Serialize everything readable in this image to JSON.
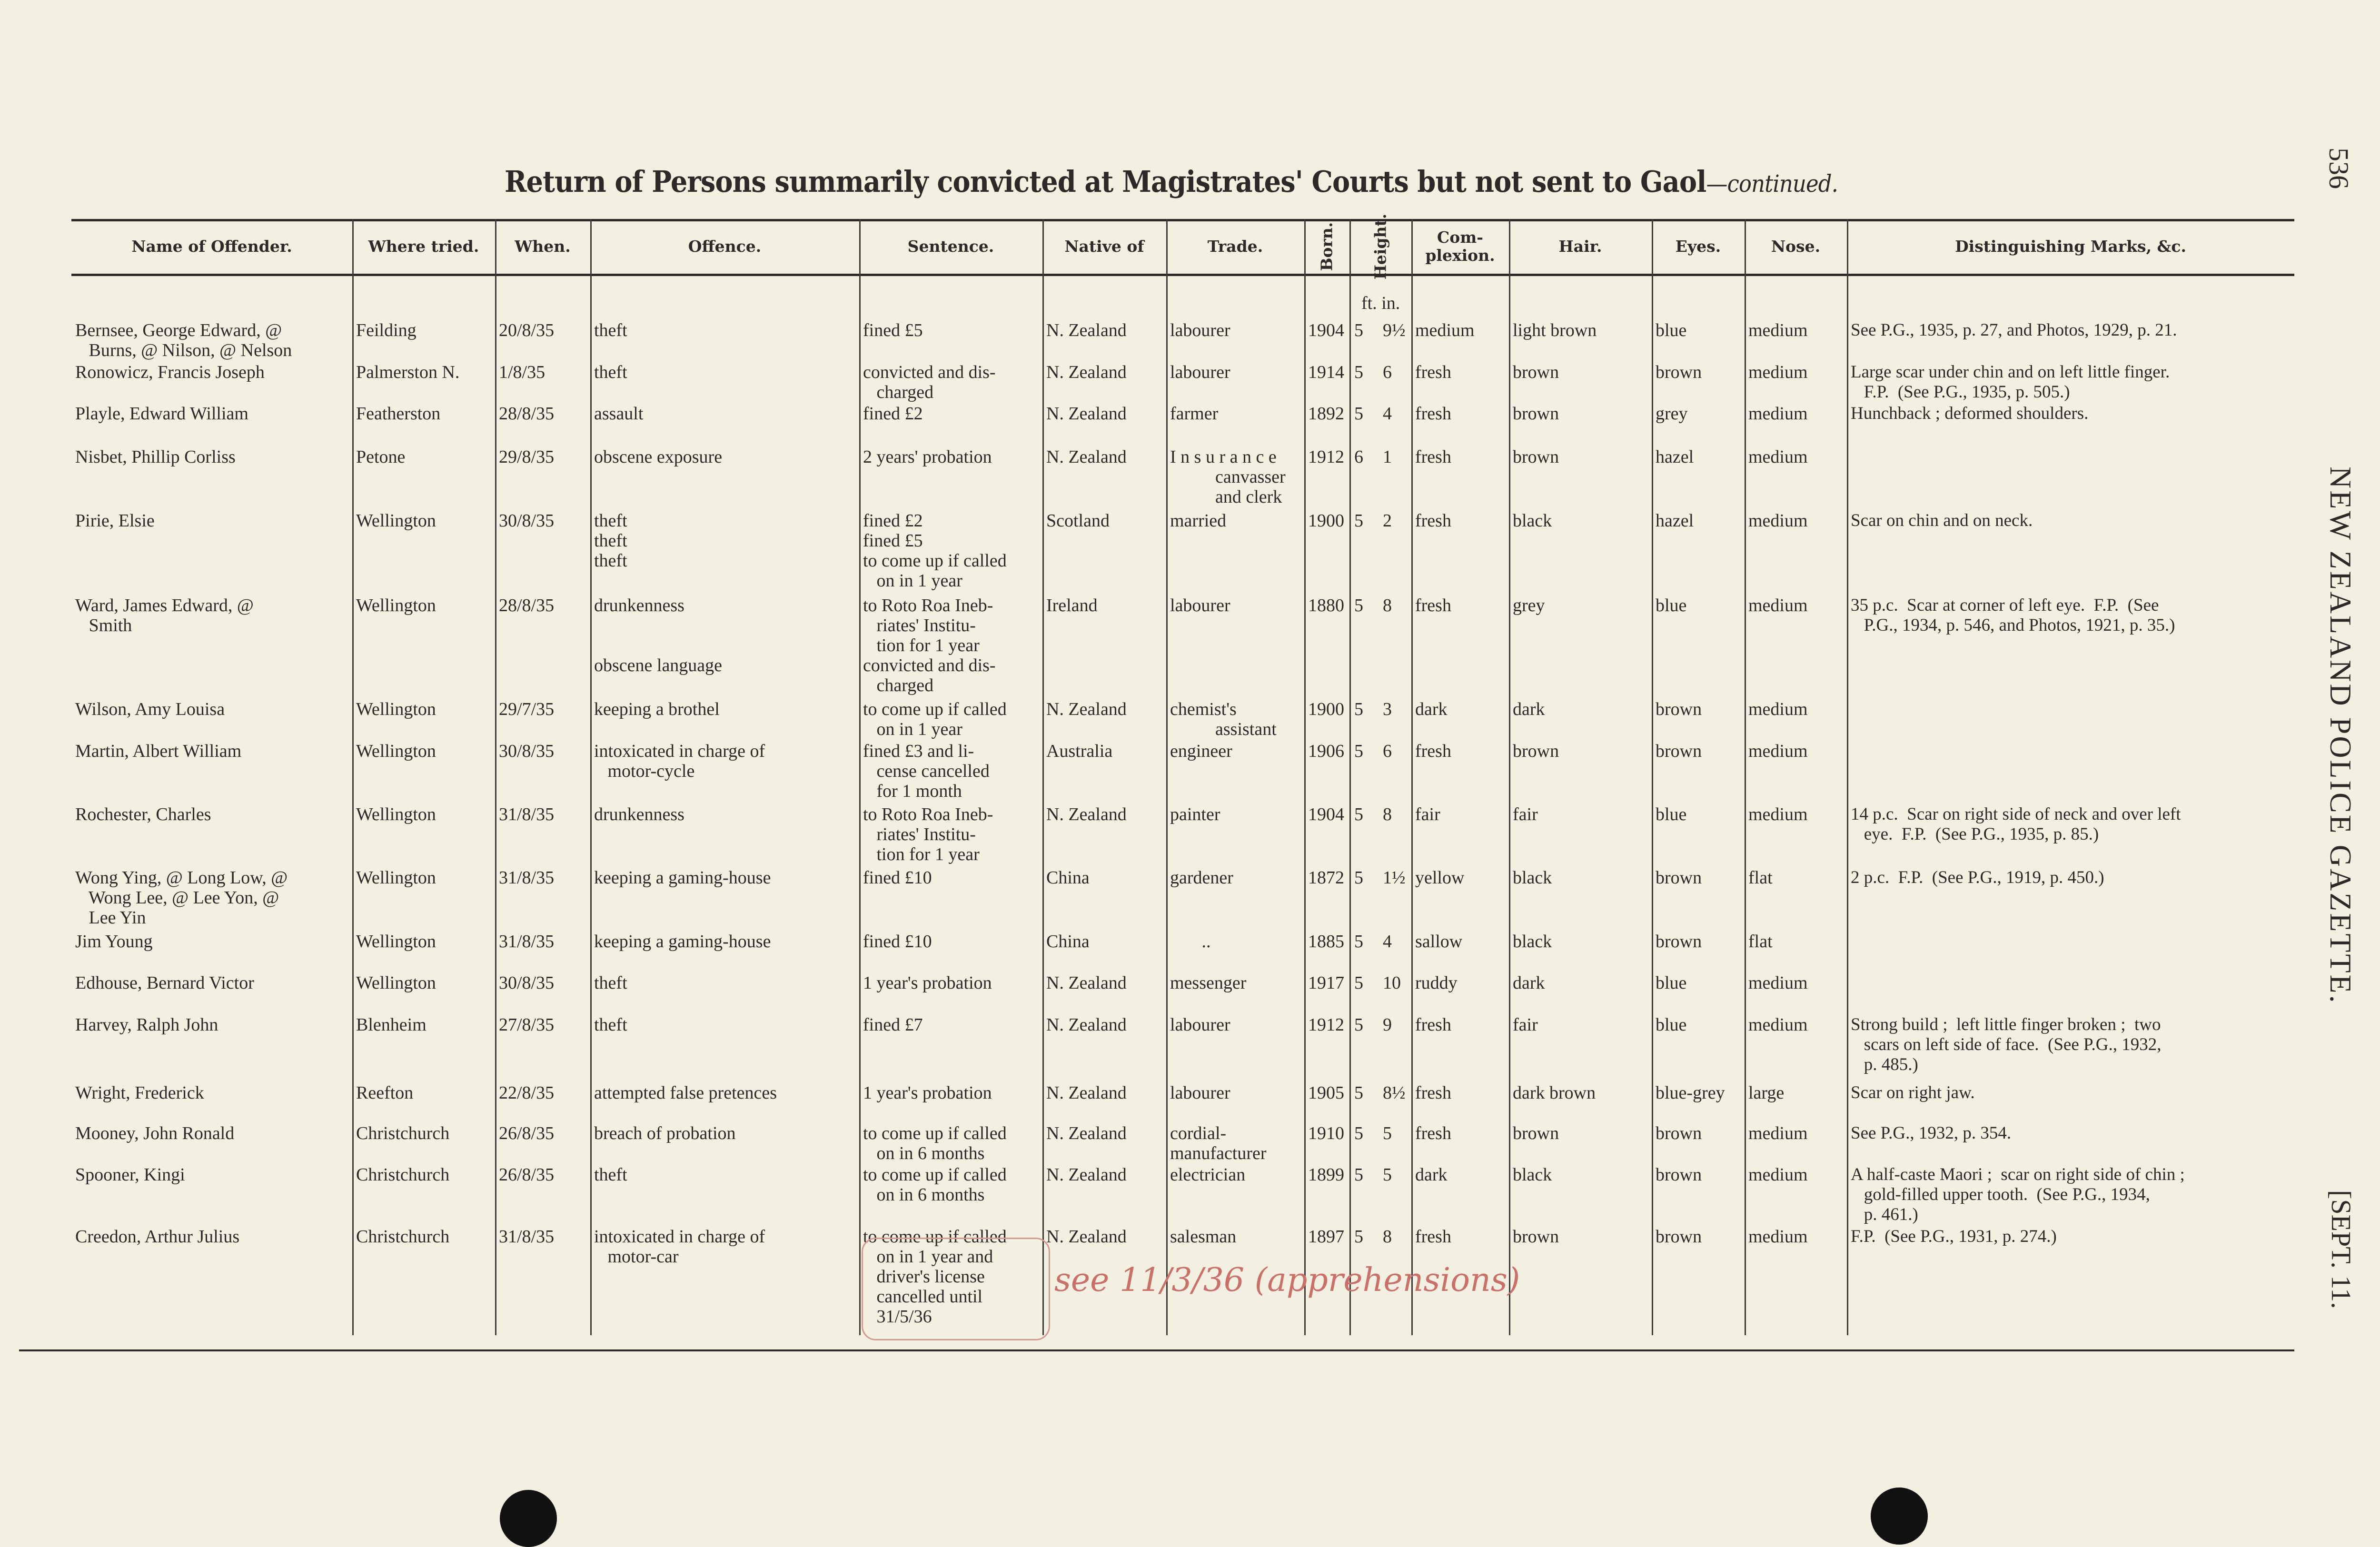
{
  "page": {
    "title": "Return of Persons summarily convicted at Magistrates' Courts but not sent to Gaol",
    "title_suffix": "—continued.",
    "page_number": "536",
    "publication": "NEW ZEALAND POLICE GAZETTE.",
    "date": "[SEPT. 11.",
    "height_units": "ft. in.",
    "annotation": "see 11/3/36 (apprehensions)",
    "ink_color": "#2b2a27",
    "annotation_color": "#c8706a"
  },
  "headers": [
    "Name of Offender.",
    "Where tried.",
    "When.",
    "Offence.",
    "Sentence.",
    "Native of",
    "Trade.",
    "Born.",
    "Height.",
    "Com-\nplexion.",
    "Hair.",
    "Eyes.",
    "Nose.",
    "Distinguishing Marks, &c."
  ],
  "rows": [
    {
      "name": "Bernsee, George Edward, @\n   Burns, @ Nilson, @ Nelson",
      "where": "Feilding",
      "when": "20/8/35",
      "entries": [
        {
          "offence": "theft",
          "sentence": "fined £5"
        }
      ],
      "native": "N. Zealand",
      "trade": "labourer",
      "born": "1904",
      "ft": "5",
      "in": "9½",
      "complexion": "medium",
      "hair": "light brown",
      "eyes": "blue",
      "nose": "medium",
      "marks": "See P.G., 1935, p. 27, and Photos, 1929, p. 21."
    },
    {
      "name": "Ronowicz, Francis Joseph",
      "where": "Palmerston N.",
      "when": "1/8/35",
      "entries": [
        {
          "offence": "theft",
          "sentence": "convicted and dis-\n   charged"
        }
      ],
      "native": "N. Zealand",
      "trade": "labourer",
      "born": "1914",
      "ft": "5",
      "in": "6",
      "complexion": "fresh",
      "hair": "brown",
      "eyes": "brown",
      "nose": "medium",
      "marks": "Large scar under chin and on left little finger.\n   F.P.  (See P.G., 1935, p. 505.)"
    },
    {
      "name": "Playle, Edward William",
      "where": "Featherston",
      "when": "28/8/35",
      "entries": [
        {
          "offence": "assault",
          "sentence": "fined £2"
        }
      ],
      "native": "N. Zealand",
      "trade": "farmer",
      "born": "1892",
      "ft": "5",
      "in": "4",
      "complexion": "fresh",
      "hair": "brown",
      "eyes": "grey",
      "nose": "medium",
      "marks": "Hunchback ; deformed shoulders."
    },
    {
      "name": "Nisbet, Phillip Corliss",
      "where": "Petone",
      "when": "29/8/35",
      "entries": [
        {
          "offence": "obscene exposure",
          "sentence": "2 years' probation"
        }
      ],
      "native": "N. Zealand",
      "trade": "I n s u r a n c e\n          canvasser\n          and clerk",
      "born": "1912",
      "ft": "6",
      "in": "1",
      "complexion": "fresh",
      "hair": "brown",
      "eyes": "hazel",
      "nose": "medium",
      "marks": ""
    },
    {
      "name": "Pirie, Elsie",
      "where": "Wellington",
      "when": "30/8/35",
      "entries": [
        {
          "offence": "theft",
          "sentence": "fined £2"
        },
        {
          "offence": "theft",
          "sentence": "fined £5"
        },
        {
          "offence": "theft",
          "sentence": "to come up if called\n   on in 1 year"
        }
      ],
      "native": "Scotland",
      "trade": "married",
      "born": "1900",
      "ft": "5",
      "in": "2",
      "complexion": "fresh",
      "hair": "black",
      "eyes": "hazel",
      "nose": "medium",
      "marks": "Scar on chin and on neck."
    },
    {
      "name": "Ward, James Edward, @\n   Smith",
      "where": "Wellington",
      "when": "28/8/35",
      "entries": [
        {
          "offence": "drunkenness",
          "sentence": "to Roto Roa Ineb-\n   riates' Institu-\n   tion for 1 year"
        },
        {
          "offence": "obscene language",
          "sentence": "convicted and dis-\n   charged"
        }
      ],
      "native": "Ireland",
      "trade": "labourer",
      "born": "1880",
      "ft": "5",
      "in": "8",
      "complexion": "fresh",
      "hair": "grey",
      "eyes": "blue",
      "nose": "medium",
      "marks": "35 p.c.  Scar at corner of left eye.  F.P.  (See\n   P.G., 1934, p. 546, and Photos, 1921, p. 35.)"
    },
    {
      "name": "Wilson, Amy Louisa",
      "where": "Wellington",
      "when": "29/7/35",
      "entries": [
        {
          "offence": "keeping a brothel",
          "sentence": "to come up if called\n   on in 1 year"
        }
      ],
      "native": "N. Zealand",
      "trade": "chemist's\n          assistant",
      "born": "1900",
      "ft": "5",
      "in": "3",
      "complexion": "dark",
      "hair": "dark",
      "eyes": "brown",
      "nose": "medium",
      "marks": ""
    },
    {
      "name": "Martin, Albert William",
      "where": "Wellington",
      "when": "30/8/35",
      "entries": [
        {
          "offence": "intoxicated in charge of\n   motor-cycle",
          "sentence": "fined £3 and li-\n   cense cancelled\n   for 1 month"
        }
      ],
      "native": "Australia",
      "trade": "engineer",
      "born": "1906",
      "ft": "5",
      "in": "6",
      "complexion": "fresh",
      "hair": "brown",
      "eyes": "brown",
      "nose": "medium",
      "marks": ""
    },
    {
      "name": "Rochester, Charles",
      "where": "Wellington",
      "when": "31/8/35",
      "entries": [
        {
          "offence": "drunkenness",
          "sentence": "to Roto Roa Ineb-\n   riates' Institu-\n   tion for 1 year"
        }
      ],
      "native": "N. Zealand",
      "trade": "painter",
      "born": "1904",
      "ft": "5",
      "in": "8",
      "complexion": "fair",
      "hair": "fair",
      "eyes": "blue",
      "nose": "medium",
      "marks": "14 p.c.  Scar on right side of neck and over left\n   eye.  F.P.  (See P.G., 1935, p. 85.)"
    },
    {
      "name": "Wong Ying, @ Long Low, @\n   Wong Lee, @ Lee Yon, @\n   Lee Yin",
      "where": "Wellington",
      "when": "31/8/35",
      "entries": [
        {
          "offence": "keeping a gaming-house",
          "sentence": "fined £10"
        }
      ],
      "native": "China",
      "trade": "gardener",
      "born": "1872",
      "ft": "5",
      "in": "1½",
      "complexion": "yellow",
      "hair": "black",
      "eyes": "brown",
      "nose": "flat",
      "marks": "2 p.c.  F.P.  (See P.G., 1919, p. 450.)"
    },
    {
      "name": "Jim Young",
      "where": "Wellington",
      "when": "31/8/35",
      "entries": [
        {
          "offence": "keeping a gaming-house",
          "sentence": "fined £10"
        }
      ],
      "native": "China",
      "trade": "       ..",
      "born": "1885",
      "ft": "5",
      "in": "4",
      "complexion": "sallow",
      "hair": "black",
      "eyes": "brown",
      "nose": "flat",
      "marks": ""
    },
    {
      "name": "Edhouse, Bernard Victor",
      "where": "Wellington",
      "when": "30/8/35",
      "entries": [
        {
          "offence": "theft",
          "sentence": "1 year's probation"
        }
      ],
      "native": "N. Zealand",
      "trade": "messenger",
      "born": "1917",
      "ft": "5",
      "in": "10",
      "complexion": "ruddy",
      "hair": "dark",
      "eyes": "blue",
      "nose": "medium",
      "marks": ""
    },
    {
      "name": "Harvey, Ralph John",
      "where": "Blenheim",
      "when": "27/8/35",
      "entries": [
        {
          "offence": "theft",
          "sentence": "fined £7"
        }
      ],
      "native": "N. Zealand",
      "trade": "labourer",
      "born": "1912",
      "ft": "5",
      "in": "9",
      "complexion": "fresh",
      "hair": "fair",
      "eyes": "blue",
      "nose": "medium",
      "marks": "Strong build ;  left little finger broken ;  two\n   scars on left side of face.  (See P.G., 1932,\n   p. 485.)"
    },
    {
      "name": "Wright, Frederick",
      "where": "Reefton",
      "when": "22/8/35",
      "entries": [
        {
          "offence": "attempted false pretences",
          "sentence": "1 year's probation"
        }
      ],
      "native": "N. Zealand",
      "trade": "labourer",
      "born": "1905",
      "ft": "5",
      "in": "8½",
      "complexion": "fresh",
      "hair": "dark brown",
      "eyes": "blue-grey",
      "nose": "large",
      "marks": "Scar on right jaw."
    },
    {
      "name": "Mooney, John Ronald",
      "where": "Christchurch",
      "when": "26/8/35",
      "entries": [
        {
          "offence": "breach of probation",
          "sentence": "to come up if called\n   on in 6 months"
        }
      ],
      "native": "N. Zealand",
      "trade": "cordial-\nmanufacturer",
      "born": "1910",
      "ft": "5",
      "in": "5",
      "complexion": "fresh",
      "hair": "brown",
      "eyes": "brown",
      "nose": "medium",
      "marks": "See P.G., 1932, p. 354."
    },
    {
      "name": "Spooner, Kingi",
      "where": "Christchurch",
      "when": "26/8/35",
      "entries": [
        {
          "offence": "theft",
          "sentence": "to come up if called\n   on in 6 months"
        }
      ],
      "native": "N. Zealand",
      "trade": "electrician",
      "born": "1899",
      "ft": "5",
      "in": "5",
      "complexion": "dark",
      "hair": "black",
      "eyes": "brown",
      "nose": "medium",
      "marks": "A half-caste Maori ;  scar on right side of chin ;\n   gold-filled upper tooth.  (See P.G., 1934,\n   p. 461.)"
    },
    {
      "name": "Creedon, Arthur Julius",
      "where": "Christchurch",
      "when": "31/8/35",
      "entries": [
        {
          "offence": "intoxicated in charge of\n   motor-car",
          "sentence": "to come up if called\n   on in 1 year and\n   driver's license\n   cancelled until\n   31/5/36"
        }
      ],
      "native": "N. Zealand",
      "trade": "salesman",
      "born": "1897",
      "ft": "5",
      "in": "8",
      "complexion": "fresh",
      "hair": "brown",
      "eyes": "brown",
      "nose": "medium",
      "marks": "F.P.  (See P.G., 1931, p. 274.)"
    }
  ]
}
